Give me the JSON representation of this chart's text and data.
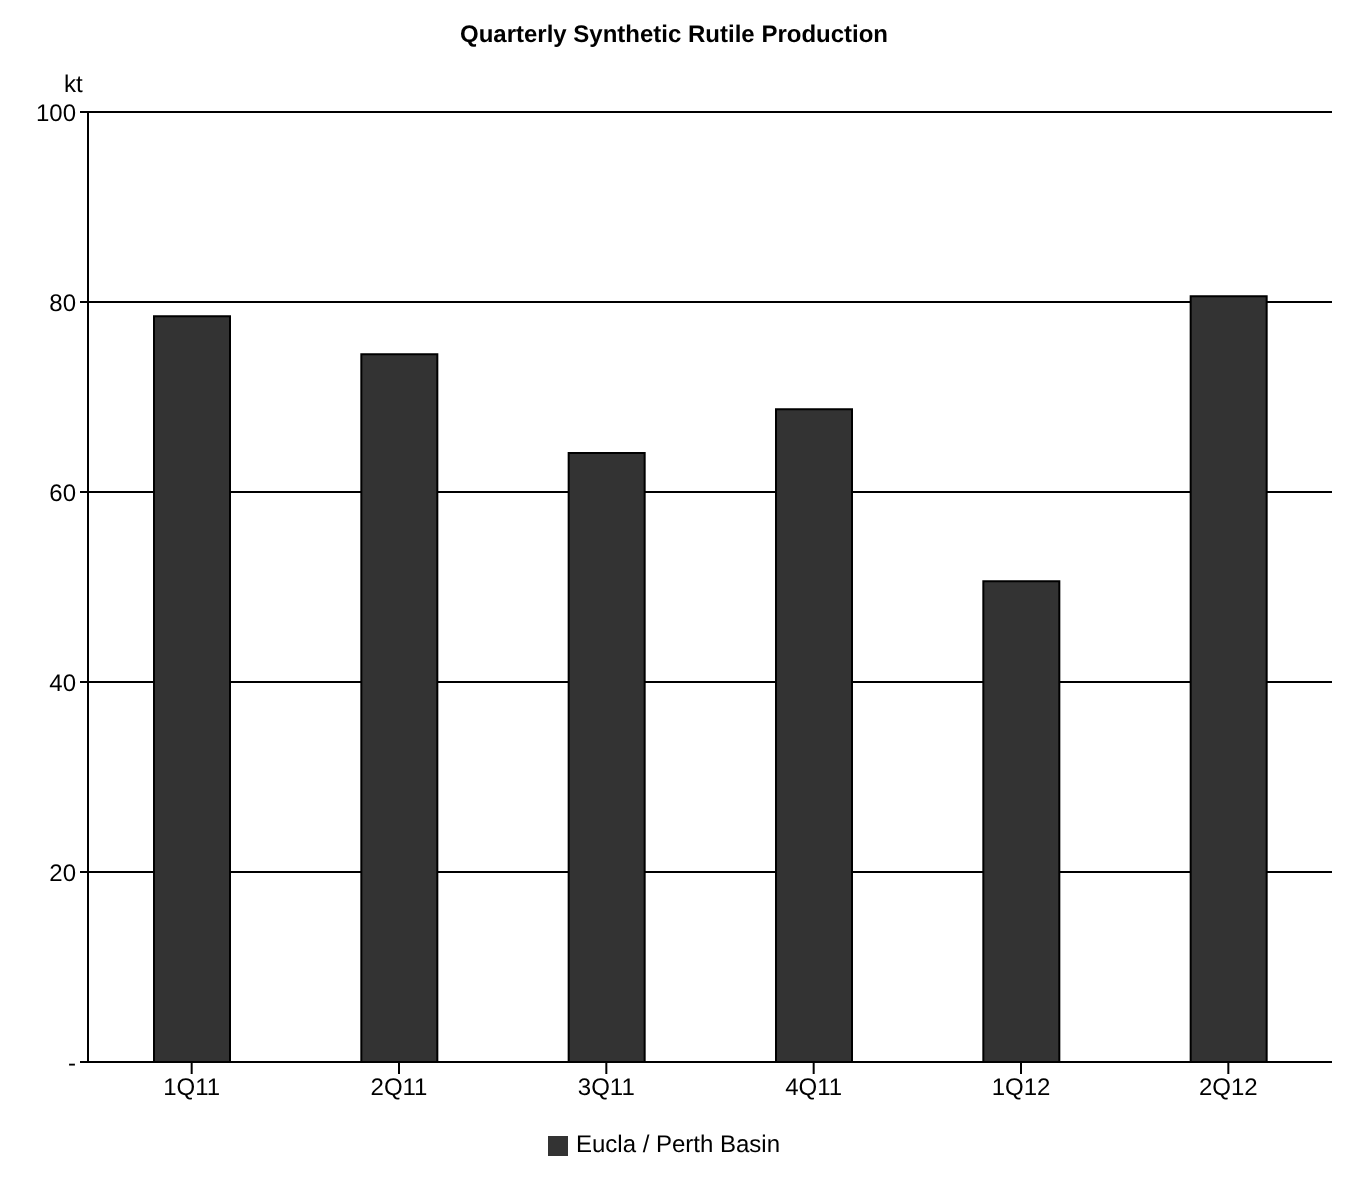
{
  "chart_data": {
    "type": "bar",
    "title": "Quarterly Synthetic Rutile Production",
    "ylabel": "kt",
    "categories": [
      "1Q11",
      "2Q11",
      "3Q11",
      "4Q11",
      "1Q12",
      "2Q12"
    ],
    "series": [
      {
        "name": "Eucla / Perth Basin",
        "color": "#333333",
        "values": [
          78.5,
          74.5,
          64.1,
          68.7,
          50.6,
          80.6
        ]
      }
    ],
    "ylim": [
      0,
      100
    ],
    "yticks": [
      {
        "value": 0,
        "label": "-"
      },
      20,
      40,
      60,
      80,
      100
    ],
    "grid": "y",
    "legend": "bottom"
  }
}
